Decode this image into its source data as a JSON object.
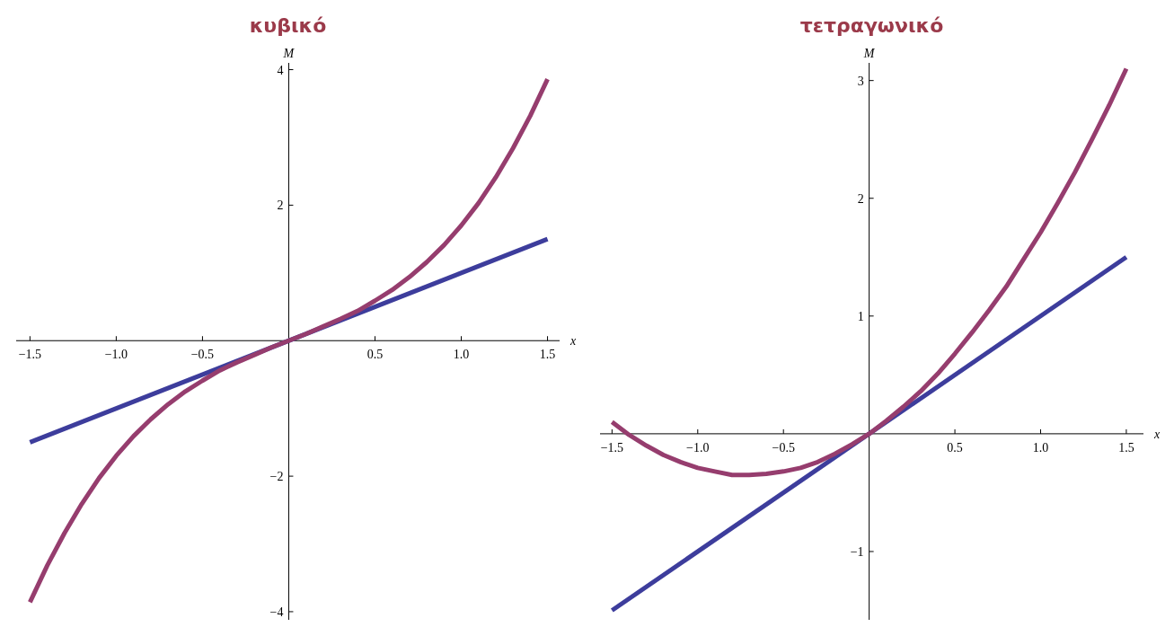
{
  "chart_data": [
    {
      "type": "line",
      "title": "κυβικό",
      "xlabel": "x",
      "ylabel": "M",
      "xlim": [
        -1.58,
        1.57
      ],
      "ylim": [
        -4.12,
        4.1
      ],
      "xticks": [
        {
          "value": -1.5,
          "label": "−1.5"
        },
        {
          "value": -1,
          "label": "−1.0"
        },
        {
          "value": -0.5,
          "label": "−0.5"
        },
        {
          "value": 0.5,
          "label": "0.5"
        },
        {
          "value": 1,
          "label": "1.0"
        },
        {
          "value": 1.5,
          "label": "1.5"
        }
      ],
      "yticks": [
        {
          "value": -4,
          "label": "−4"
        },
        {
          "value": -2,
          "label": "−2"
        },
        2,
        4
      ],
      "series": [
        {
          "color": "#3d3d9c",
          "x": [
            -1.5,
            1.5
          ],
          "values": [
            -1.5,
            1.5
          ]
        },
        {
          "color": "#963d6e",
          "x": [
            -1.5,
            -1.4,
            -1.3,
            -1.2,
            -1.1,
            -1,
            -0.9,
            -0.8,
            -0.7,
            -0.6,
            -0.5,
            -0.4,
            -0.3,
            -0.2,
            -0.1,
            0,
            0.1,
            0.2,
            0.3,
            0.4,
            0.5,
            0.6,
            0.7,
            0.8,
            0.9,
            1,
            1.1,
            1.2,
            1.3,
            1.4,
            1.5
          ],
          "values": [
            -3.86,
            -3.32,
            -2.84,
            -2.41,
            -2.03,
            -1.7,
            -1.41,
            -1.16,
            -0.94,
            -0.75,
            -0.59,
            -0.44,
            -0.32,
            -0.21,
            -0.1,
            0,
            0.1,
            0.21,
            0.32,
            0.44,
            0.59,
            0.75,
            0.94,
            1.16,
            1.41,
            1.7,
            2.03,
            2.41,
            2.84,
            3.32,
            3.86
          ]
        }
      ]
    },
    {
      "type": "line",
      "title": "τετραγωνικό",
      "xlabel": "x",
      "ylabel": "M",
      "xlim": [
        -1.57,
        1.6
      ],
      "ylim": [
        -1.58,
        3.15
      ],
      "xticks": [
        {
          "value": -1.5,
          "label": "−1.5"
        },
        {
          "value": -1,
          "label": "−1.0"
        },
        {
          "value": -0.5,
          "label": "−0.5"
        },
        {
          "value": 0.5,
          "label": "0.5"
        },
        {
          "value": 1,
          "label": "1.0"
        },
        {
          "value": 1.5,
          "label": "1.5"
        }
      ],
      "yticks": [
        {
          "value": -1,
          "label": "−1"
        },
        1,
        2,
        3
      ],
      "series": [
        {
          "color": "#3d3d9c",
          "x": [
            -1.5,
            1.5
          ],
          "values": [
            -1.5,
            1.5
          ]
        },
        {
          "color": "#963d6e",
          "x": [
            -1.5,
            -1.4,
            -1.3,
            -1.2,
            -1.1,
            -1,
            -0.9,
            -0.8,
            -0.7,
            -0.6,
            -0.5,
            -0.4,
            -0.3,
            -0.2,
            -0.1,
            0,
            0.1,
            0.2,
            0.3,
            0.4,
            0.5,
            0.6,
            0.7,
            0.8,
            0.9,
            1,
            1.1,
            1.2,
            1.3,
            1.4,
            1.5
          ],
          "values": [
            0.1,
            -0.01,
            -0.1,
            -0.18,
            -0.24,
            -0.29,
            -0.32,
            -0.35,
            -0.35,
            -0.34,
            -0.32,
            -0.29,
            -0.24,
            -0.17,
            -0.09,
            0,
            0.11,
            0.23,
            0.36,
            0.51,
            0.68,
            0.86,
            1.05,
            1.25,
            1.48,
            1.71,
            1.96,
            2.22,
            2.5,
            2.79,
            3.1
          ]
        }
      ]
    }
  ]
}
